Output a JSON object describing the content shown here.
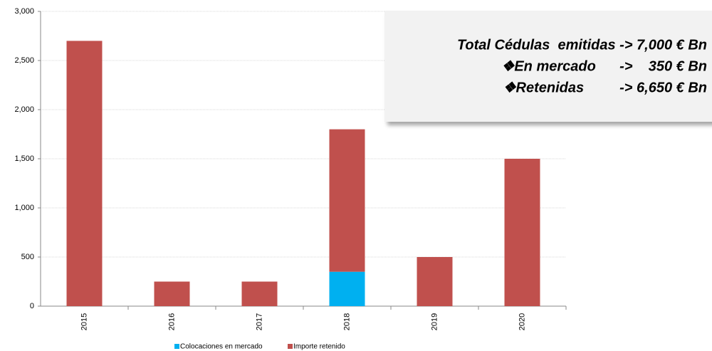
{
  "chart_data": {
    "type": "bar",
    "stacked": true,
    "categories": [
      "2015",
      "2016",
      "2017",
      "2018",
      "2019",
      "2020"
    ],
    "series": [
      {
        "name": "Colocaciones en mercado",
        "color": "#00b0f0",
        "values": [
          0,
          0,
          0,
          350,
          0,
          0
        ]
      },
      {
        "name": "Importe retenido",
        "color": "#c0504d",
        "values": [
          2700,
          250,
          250,
          1450,
          500,
          1500
        ]
      }
    ],
    "ylim": [
      0,
      3000
    ],
    "yticks": [
      0,
      500,
      {
        "value": 1000,
        "label": "1,000"
      },
      {
        "value": 1500,
        "label": "1,500"
      },
      {
        "value": 2000,
        "label": "2,000"
      },
      {
        "value": 2500,
        "label": "2,500"
      },
      {
        "value": 3000,
        "label": "3,000"
      }
    ],
    "grid": true,
    "legend": "bottom",
    "annotations": [
      "Total Cédulas  emitidas -> 7,000 € Bn",
      "❖En mercado      ->    350 € Bn",
      "❖Retenidas         -> 6,650 € Bn"
    ]
  }
}
